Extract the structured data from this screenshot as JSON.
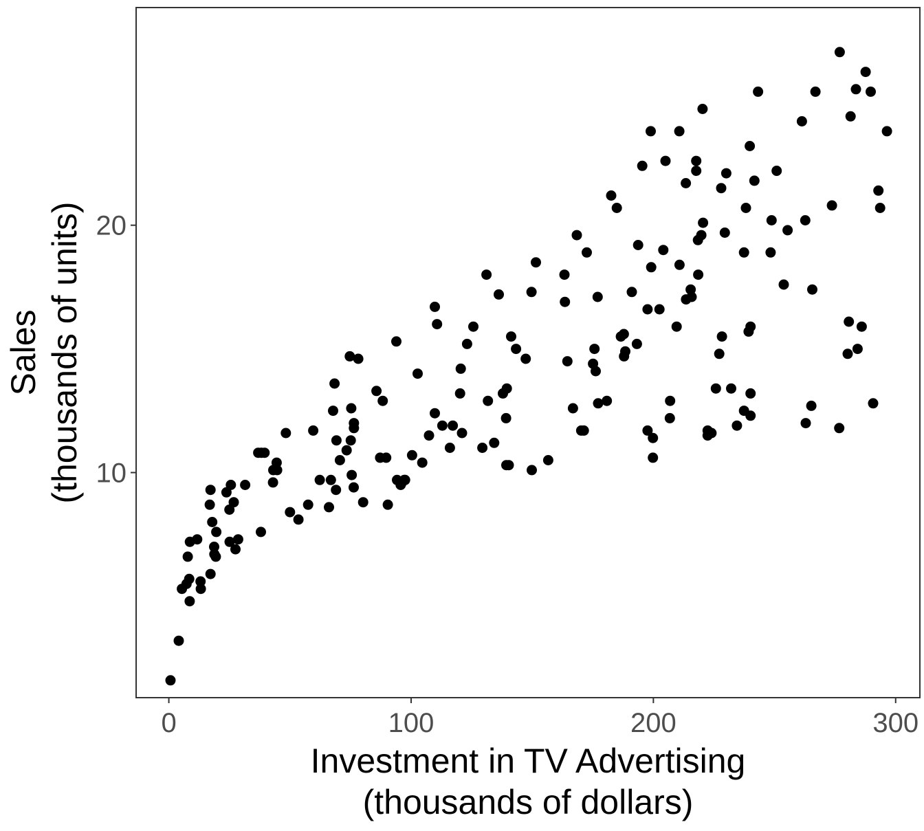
{
  "chart_data": {
    "type": "scatter",
    "xlabel": [
      "Investment in TV Advertising",
      "(thousands of dollars)"
    ],
    "ylabel": [
      "Sales",
      "(thousands of units)"
    ],
    "xlim": [
      -13.5,
      310
    ],
    "ylim": [
      0.9,
      28.8
    ],
    "xticks": [
      0,
      100,
      200,
      300
    ],
    "yticks": [
      10,
      20
    ],
    "grid": false,
    "legend": "none",
    "point_color": "#000000",
    "points": [
      [
        0.7,
        1.6
      ],
      [
        4.1,
        3.2
      ],
      [
        5.4,
        5.3
      ],
      [
        7.3,
        5.5
      ],
      [
        7.8,
        6.6
      ],
      [
        8.4,
        5.7
      ],
      [
        8.6,
        4.8
      ],
      [
        8.7,
        7.2
      ],
      [
        11.7,
        7.3
      ],
      [
        13.1,
        5.6
      ],
      [
        13.2,
        5.3
      ],
      [
        16.9,
        8.7
      ],
      [
        17.2,
        5.9
      ],
      [
        17.2,
        9.3
      ],
      [
        17.9,
        8.0
      ],
      [
        18.7,
        7.0
      ],
      [
        18.8,
        6.7
      ],
      [
        19.4,
        6.6
      ],
      [
        19.6,
        7.6
      ],
      [
        23.8,
        9.2
      ],
      [
        25.0,
        8.5
      ],
      [
        25.1,
        7.2
      ],
      [
        25.6,
        9.5
      ],
      [
        26.8,
        8.8
      ],
      [
        27.5,
        6.9
      ],
      [
        28.6,
        7.3
      ],
      [
        31.5,
        9.5
      ],
      [
        36.9,
        10.8
      ],
      [
        38.0,
        7.6
      ],
      [
        38.2,
        10.8
      ],
      [
        39.5,
        10.8
      ],
      [
        43.0,
        9.6
      ],
      [
        43.1,
        10.1
      ],
      [
        44.5,
        10.4
      ],
      [
        44.7,
        10.1
      ],
      [
        48.3,
        11.6
      ],
      [
        50.0,
        8.4
      ],
      [
        53.5,
        8.1
      ],
      [
        57.5,
        8.7
      ],
      [
        59.6,
        11.7
      ],
      [
        62.3,
        9.7
      ],
      [
        66.1,
        8.6
      ],
      [
        66.9,
        9.7
      ],
      [
        67.8,
        12.5
      ],
      [
        68.4,
        13.6
      ],
      [
        69.0,
        9.3
      ],
      [
        69.2,
        11.3
      ],
      [
        70.6,
        10.5
      ],
      [
        73.4,
        10.9
      ],
      [
        74.7,
        14.7
      ],
      [
        75.1,
        11.3
      ],
      [
        75.3,
        12.6
      ],
      [
        75.5,
        9.9
      ],
      [
        76.3,
        9.4
      ],
      [
        76.4,
        11.8
      ],
      [
        76.4,
        12.0
      ],
      [
        78.2,
        14.6
      ],
      [
        80.2,
        8.8
      ],
      [
        85.7,
        13.3
      ],
      [
        87.2,
        10.6
      ],
      [
        88.3,
        12.9
      ],
      [
        89.7,
        10.6
      ],
      [
        90.4,
        8.7
      ],
      [
        93.9,
        15.3
      ],
      [
        94.2,
        9.7
      ],
      [
        95.7,
        9.5
      ],
      [
        96.2,
        9.6
      ],
      [
        97.2,
        9.7
      ],
      [
        97.5,
        9.7
      ],
      [
        100.4,
        10.7
      ],
      [
        102.7,
        14.0
      ],
      [
        104.6,
        10.4
      ],
      [
        107.4,
        11.5
      ],
      [
        109.8,
        16.7
      ],
      [
        109.8,
        12.4
      ],
      [
        110.7,
        16.0
      ],
      [
        112.9,
        11.9
      ],
      [
        116.0,
        11.0
      ],
      [
        117.2,
        11.9
      ],
      [
        120.2,
        13.2
      ],
      [
        120.5,
        14.2
      ],
      [
        121.0,
        11.6
      ],
      [
        123.1,
        15.2
      ],
      [
        125.7,
        15.9
      ],
      [
        129.4,
        11.0
      ],
      [
        131.1,
        18.0
      ],
      [
        131.7,
        12.9
      ],
      [
        134.3,
        11.2
      ],
      [
        136.2,
        17.2
      ],
      [
        137.9,
        13.2
      ],
      [
        139.2,
        12.2
      ],
      [
        139.3,
        10.3
      ],
      [
        139.5,
        13.4
      ],
      [
        140.3,
        10.3
      ],
      [
        141.3,
        15.5
      ],
      [
        143.3,
        15.0
      ],
      [
        147.3,
        14.6
      ],
      [
        149.7,
        17.3
      ],
      [
        149.8,
        10.1
      ],
      [
        151.5,
        18.5
      ],
      [
        156.6,
        10.5
      ],
      [
        163.3,
        18.0
      ],
      [
        163.5,
        16.9
      ],
      [
        164.5,
        14.5
      ],
      [
        166.8,
        12.6
      ],
      [
        168.4,
        19.6
      ],
      [
        170.2,
        11.7
      ],
      [
        171.3,
        11.7
      ],
      [
        172.5,
        18.9
      ],
      [
        175.1,
        14.4
      ],
      [
        175.7,
        15.0
      ],
      [
        176.2,
        14.1
      ],
      [
        177.0,
        17.1
      ],
      [
        177.2,
        12.8
      ],
      [
        180.8,
        12.9
      ],
      [
        182.6,
        21.2
      ],
      [
        184.9,
        20.7
      ],
      [
        186.6,
        15.5
      ],
      [
        187.8,
        15.6
      ],
      [
        187.9,
        14.7
      ],
      [
        188.4,
        14.9
      ],
      [
        191.1,
        17.3
      ],
      [
        193.2,
        15.2
      ],
      [
        193.7,
        19.2
      ],
      [
        195.4,
        22.4
      ],
      [
        197.6,
        16.6
      ],
      [
        197.6,
        11.7
      ],
      [
        198.9,
        23.8
      ],
      [
        199.1,
        18.3
      ],
      [
        199.8,
        11.4
      ],
      [
        199.8,
        10.6
      ],
      [
        202.5,
        16.6
      ],
      [
        204.1,
        19.0
      ],
      [
        205.0,
        22.6
      ],
      [
        206.8,
        12.2
      ],
      [
        206.9,
        12.9
      ],
      [
        209.6,
        15.9
      ],
      [
        210.7,
        23.8
      ],
      [
        210.8,
        18.4
      ],
      [
        213.4,
        21.7
      ],
      [
        213.5,
        17.0
      ],
      [
        215.4,
        17.4
      ],
      [
        215.8,
        17.1
      ],
      [
        217.7,
        22.2
      ],
      [
        217.7,
        22.6
      ],
      [
        218.4,
        19.4
      ],
      [
        218.5,
        18.0
      ],
      [
        219.8,
        19.6
      ],
      [
        220.3,
        24.7
      ],
      [
        220.5,
        20.1
      ],
      [
        222.4,
        11.7
      ],
      [
        222.4,
        11.5
      ],
      [
        224.0,
        11.6
      ],
      [
        225.8,
        13.4
      ],
      [
        227.2,
        14.8
      ],
      [
        228.0,
        21.5
      ],
      [
        228.3,
        15.5
      ],
      [
        229.5,
        19.7
      ],
      [
        230.1,
        22.1
      ],
      [
        232.1,
        13.4
      ],
      [
        234.5,
        11.9
      ],
      [
        237.4,
        18.9
      ],
      [
        237.4,
        12.5
      ],
      [
        238.2,
        20.7
      ],
      [
        239.3,
        15.7
      ],
      [
        239.8,
        23.2
      ],
      [
        240.1,
        12.3
      ],
      [
        240.1,
        13.2
      ],
      [
        240.1,
        15.9
      ],
      [
        241.7,
        21.8
      ],
      [
        243.2,
        25.4
      ],
      [
        248.4,
        18.9
      ],
      [
        248.8,
        20.2
      ],
      [
        250.9,
        22.2
      ],
      [
        253.8,
        17.6
      ],
      [
        255.4,
        19.8
      ],
      [
        261.3,
        24.2
      ],
      [
        262.7,
        20.2
      ],
      [
        262.9,
        12.0
      ],
      [
        265.2,
        12.7
      ],
      [
        265.6,
        17.4
      ],
      [
        266.9,
        25.4
      ],
      [
        273.7,
        20.8
      ],
      [
        276.7,
        11.8
      ],
      [
        276.9,
        27.0
      ],
      [
        280.2,
        14.8
      ],
      [
        280.7,
        16.1
      ],
      [
        281.4,
        24.4
      ],
      [
        283.6,
        25.5
      ],
      [
        284.3,
        15.0
      ],
      [
        286.0,
        15.9
      ],
      [
        287.6,
        26.2
      ],
      [
        289.7,
        25.4
      ],
      [
        290.7,
        12.8
      ],
      [
        292.9,
        21.4
      ],
      [
        293.6,
        20.7
      ],
      [
        296.4,
        23.8
      ]
    ]
  }
}
